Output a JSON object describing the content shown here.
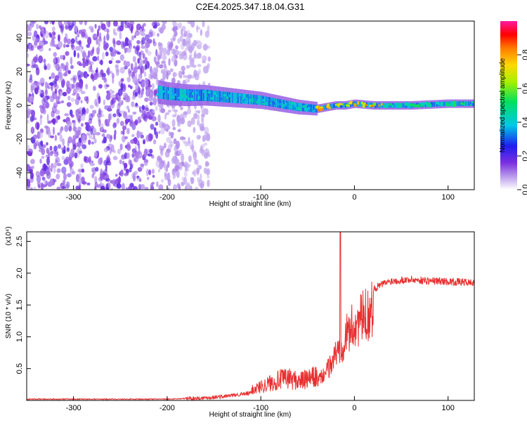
{
  "title": "C2E4.2025.347.18.04.G31",
  "chart_data": [
    {
      "type": "heatmap",
      "title": "C2E4.2025.347.18.04.G31",
      "xlabel": "Height of straight line (km)",
      "ylabel": "Frequency (Hz)",
      "xlim": [
        -350,
        128
      ],
      "ylim": [
        -50,
        50
      ],
      "xticks": [
        -300,
        -200,
        -100,
        0,
        100
      ],
      "yticks": [
        -40,
        -20,
        0,
        20,
        40
      ],
      "colorbar": {
        "label": "Normalized spectral amplitude",
        "range": [
          0,
          1
        ],
        "ticks": [
          0.0,
          0.2,
          0.4,
          0.6,
          0.8
        ],
        "tick_labels": [
          "0.0",
          "0.2",
          "0.4",
          "0.6",
          "0.8"
        ]
      },
      "ridge": {
        "x": [
          -210,
          -200,
          -180,
          -160,
          -140,
          -120,
          -100,
          -80,
          -60,
          -40,
          -30,
          -20,
          -10,
          0,
          20,
          60,
          100,
          128
        ],
        "y": [
          8,
          7,
          6,
          6,
          5,
          4,
          3,
          1,
          -1,
          -2,
          -1,
          0,
          0,
          1,
          0,
          0,
          1,
          1
        ]
      },
      "background_noise": "scattered weak amplitude for x < -160 km"
    },
    {
      "type": "line",
      "xlabel": "Height of straight line (km)",
      "ylabel": "SNR (10 * v/v)",
      "y_multiplier": "(x10⁴)",
      "xlim": [
        -350,
        128
      ],
      "ylim": [
        0,
        2.65
      ],
      "xticks": [
        -300,
        -200,
        -100,
        0,
        100
      ],
      "yticks": [
        0.5,
        1.0,
        1.5,
        2.0,
        2.5
      ],
      "ytick_labels": [
        "0.5",
        "1.0",
        "1.5",
        "2.0",
        "2.5"
      ],
      "series": [
        {
          "color": "#e83030",
          "x": [
            -350,
            -300,
            -250,
            -200,
            -180,
            -160,
            -140,
            -120,
            -110,
            -100,
            -90,
            -80,
            -70,
            -60,
            -50,
            -40,
            -30,
            -25,
            -20,
            -15,
            -10,
            -5,
            0,
            10,
            20,
            30,
            40,
            60,
            80,
            100,
            128
          ],
          "y": [
            0.02,
            0.02,
            0.02,
            0.02,
            0.03,
            0.04,
            0.06,
            0.1,
            0.15,
            0.2,
            0.25,
            0.3,
            0.32,
            0.28,
            0.3,
            0.35,
            0.55,
            0.7,
            0.9,
            1.0,
            1.2,
            1.35,
            1.45,
            1.6,
            1.75,
            1.83,
            1.88,
            1.9,
            1.88,
            1.87,
            1.85
          ]
        }
      ],
      "spike": {
        "x": -15,
        "y": 2.65
      }
    }
  ]
}
